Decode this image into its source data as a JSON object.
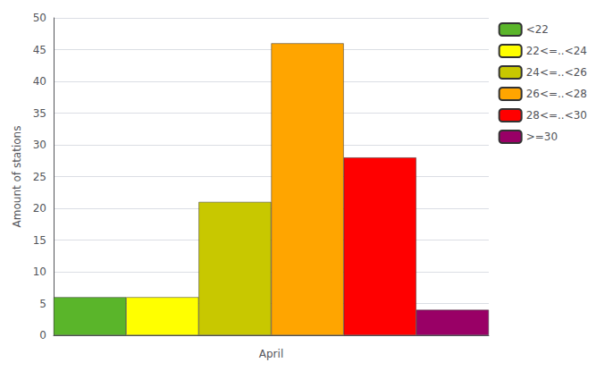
{
  "chart_data": {
    "type": "bar",
    "xlabel": "April",
    "ylabel": "Amount of stations",
    "categories": [
      "<22",
      "22<=..<24",
      "24<=..<26",
      "26<=..<28",
      "28<=..<30",
      ">=30"
    ],
    "values": [
      6,
      6,
      21,
      46,
      28,
      4
    ],
    "colors": [
      "#5ab52a",
      "#ffff00",
      "#c8c800",
      "#ffa500",
      "#ff0000",
      "#990066"
    ],
    "ylim": [
      0,
      50
    ],
    "yticks": [
      0,
      5,
      10,
      15,
      20,
      25,
      30,
      35,
      40,
      45,
      50
    ],
    "grid": true,
    "legend": "upper right",
    "tick_labels": "y"
  }
}
